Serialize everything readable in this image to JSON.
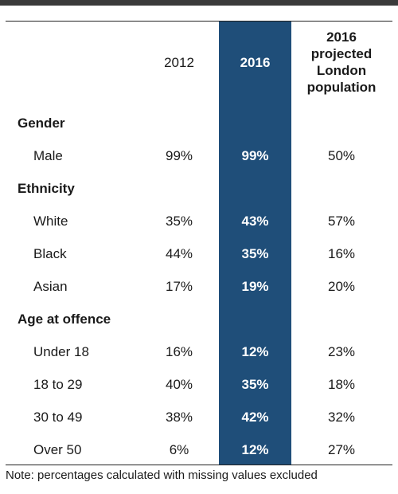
{
  "header": {
    "col_2012": "2012",
    "col_2016": "2016",
    "col_projected_line1": "2016",
    "col_projected_line2": "projected",
    "col_projected_line3": "London",
    "col_projected_line4": "population"
  },
  "sections": {
    "gender": {
      "title": "Gender",
      "rows": [
        {
          "label": "Male",
          "v2012": "99%",
          "v2016": "99%",
          "proj": "50%"
        }
      ]
    },
    "ethnicity": {
      "title": "Ethnicity",
      "rows": [
        {
          "label": "White",
          "v2012": "35%",
          "v2016": "43%",
          "proj": "57%"
        },
        {
          "label": "Black",
          "v2012": "44%",
          "v2016": "35%",
          "proj": "16%"
        },
        {
          "label": "Asian",
          "v2012": "17%",
          "v2016": "19%",
          "proj": "20%"
        }
      ]
    },
    "age": {
      "title": "Age at offence",
      "rows": [
        {
          "label": "Under 18",
          "v2012": "16%",
          "v2016": "12%",
          "proj": "23%"
        },
        {
          "label": "18 to 29",
          "v2012": "40%",
          "v2016": "35%",
          "proj": "18%"
        },
        {
          "label": "30 to 49",
          "v2012": "38%",
          "v2016": "42%",
          "proj": "32%"
        },
        {
          "label": "Over 50",
          "v2012": "6%",
          "v2016": "12%",
          "proj": "27%"
        }
      ]
    }
  },
  "note": "Note: percentages calculated with missing values excluded",
  "colors": {
    "highlight": "#1f4e79",
    "topbar": "#3a3a3a"
  }
}
